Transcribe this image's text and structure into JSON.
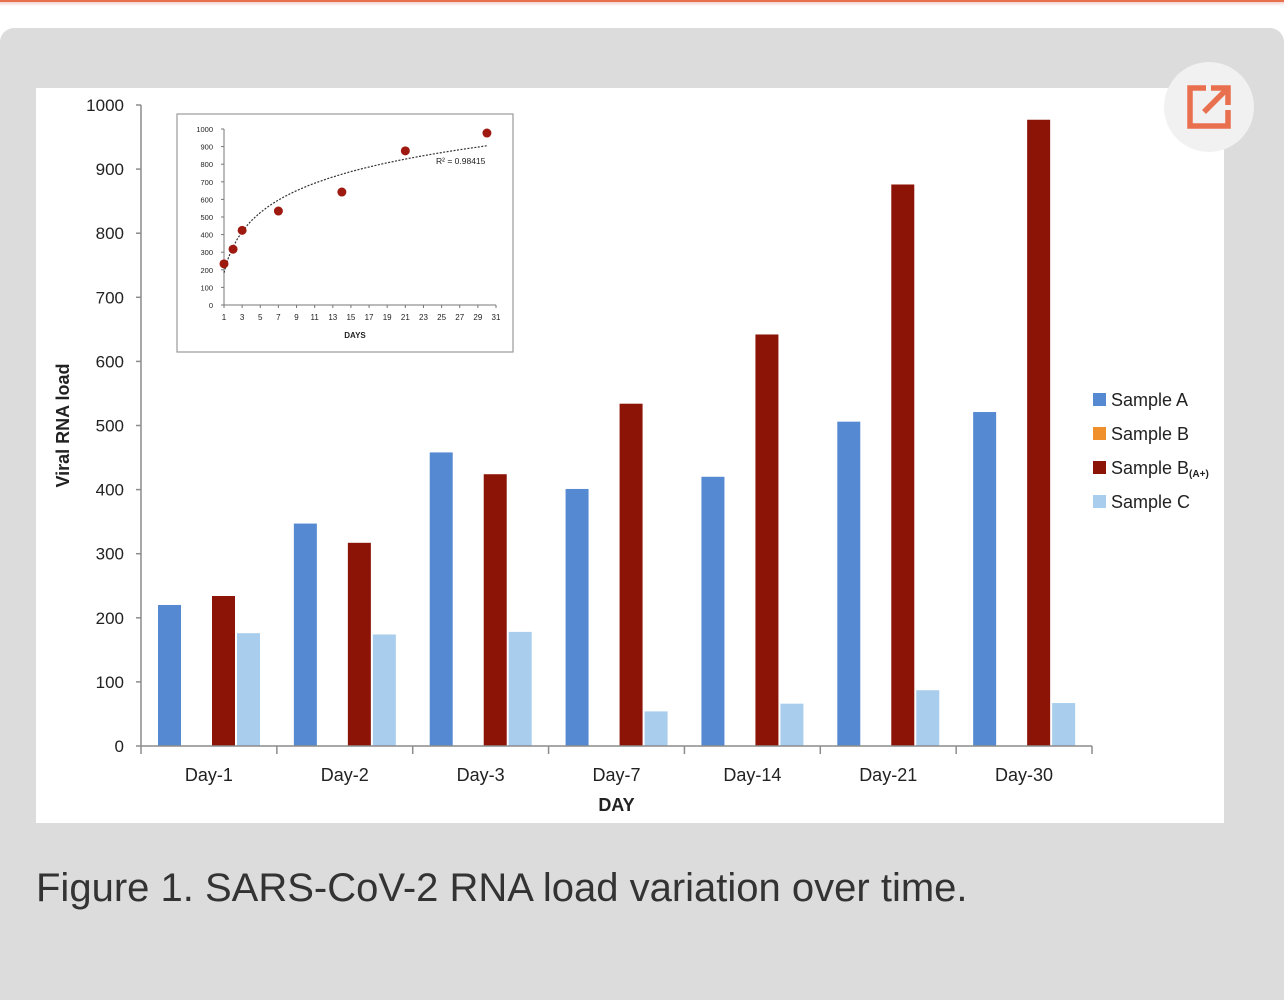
{
  "figure": {
    "caption": "Figure 1. SARS-CoV-2 RNA load variation over time.",
    "open_icon": "external-link-icon",
    "accent": "#e9704f"
  },
  "chart_data": [
    {
      "type": "bar",
      "title": "",
      "xlabel": "DAY",
      "ylabel": "Viral RNA load",
      "ylim": [
        0,
        1000
      ],
      "yticks": [
        0,
        100,
        200,
        300,
        400,
        500,
        600,
        700,
        800,
        900,
        1000
      ],
      "categories": [
        "Day-1",
        "Day-2",
        "Day-3",
        "Day-7",
        "Day-14",
        "Day-21",
        "Day-30"
      ],
      "legend_position": "right",
      "series": [
        {
          "name": "Sample A",
          "color": "#5589d2",
          "values": [
            220,
            347,
            458,
            401,
            420,
            506,
            521
          ]
        },
        {
          "name": "Sample B",
          "color": "#f0902c",
          "values": [
            0,
            0,
            0,
            0,
            0,
            0,
            0
          ]
        },
        {
          "name": "Sample B",
          "subscript": "(A+)",
          "color": "#8c1407",
          "values": [
            234,
            317,
            424,
            534,
            642,
            876,
            977
          ]
        },
        {
          "name": "Sample C",
          "color": "#a9cdec",
          "values": [
            176,
            174,
            178,
            54,
            66,
            87,
            67
          ]
        }
      ]
    },
    {
      "type": "scatter",
      "title": "",
      "xlabel": "DAYS",
      "ylabel": "",
      "xlim": [
        1,
        31
      ],
      "ylim": [
        0,
        1000
      ],
      "xticks": [
        1,
        3,
        5,
        7,
        9,
        11,
        13,
        15,
        17,
        19,
        21,
        23,
        25,
        27,
        29,
        31
      ],
      "yticks": [
        0,
        100,
        200,
        300,
        400,
        500,
        600,
        700,
        800,
        900,
        1000
      ],
      "x": [
        1,
        2,
        3,
        7,
        14,
        21,
        30
      ],
      "y": [
        234,
        317,
        424,
        534,
        642,
        876,
        977
      ],
      "trendline": "logarithmic",
      "annotation": "R² = 0.98415",
      "point_color": "#9e1a10"
    }
  ]
}
